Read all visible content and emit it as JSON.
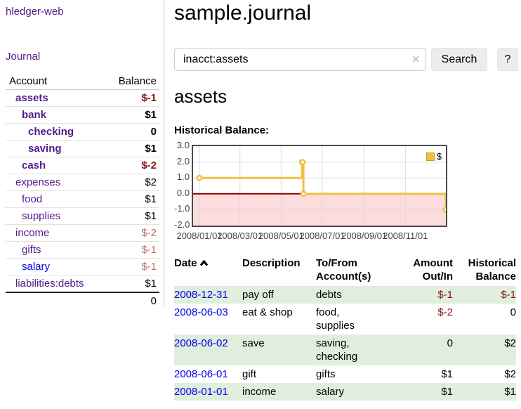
{
  "app": {
    "brand": "hledger-web"
  },
  "sidebar": {
    "journal_link": "Journal",
    "headers": {
      "account": "Account",
      "balance": "Balance"
    },
    "accounts": [
      {
        "name": "assets",
        "balance": "$-1"
      },
      {
        "name": "bank",
        "balance": "$1"
      },
      {
        "name": "checking",
        "balance": "0"
      },
      {
        "name": "saving",
        "balance": "$1"
      },
      {
        "name": "cash",
        "balance": "$-2"
      },
      {
        "name": "expenses",
        "balance": "$2"
      },
      {
        "name": "food",
        "balance": "$1"
      },
      {
        "name": "supplies",
        "balance": "$1"
      },
      {
        "name": "income",
        "balance": "$-2"
      },
      {
        "name": "gifts",
        "balance": "$-1"
      },
      {
        "name": "salary",
        "balance": "$-1"
      },
      {
        "name": "liabilities:debts",
        "balance": "$1"
      }
    ],
    "total": "0"
  },
  "main": {
    "title": "sample.journal",
    "search": {
      "value": "inacct:assets",
      "clear": "✕",
      "button": "Search",
      "help": "?"
    },
    "account_heading": "assets",
    "chart_label": "Historical Balance:",
    "register": {
      "headers": {
        "date": "Date",
        "description": "Description",
        "accounts": "To/From Account(s)",
        "amount": "Amount Out/In",
        "balance": "Historical Balance"
      },
      "rows": [
        {
          "date": "2008-12-31",
          "description": "pay off",
          "accounts": "debts",
          "amount": "$-1",
          "balance": "$-1"
        },
        {
          "date": "2008-06-03",
          "description": "eat & shop",
          "accounts": "food, supplies",
          "amount": "$-2",
          "balance": "0"
        },
        {
          "date": "2008-06-02",
          "description": "save",
          "accounts": "saving, checking",
          "amount": "0",
          "balance": "$2"
        },
        {
          "date": "2008-06-01",
          "description": "gift",
          "accounts": "gifts",
          "amount": "$1",
          "balance": "$2"
        },
        {
          "date": "2008-01-01",
          "description": "income",
          "accounts": "salary",
          "amount": "$1",
          "balance": "$1"
        }
      ]
    }
  },
  "chart_data": {
    "type": "line",
    "title": "Historical Balance:",
    "step": true,
    "series": [
      {
        "name": "$",
        "points": [
          [
            "2008-01-01",
            1
          ],
          [
            "2008-06-01",
            2
          ],
          [
            "2008-06-02",
            2
          ],
          [
            "2008-06-03",
            0
          ],
          [
            "2008-12-31",
            -1
          ]
        ]
      }
    ],
    "x_ticks": [
      "2008/01/01",
      "2008/03/01",
      "2008/05/01",
      "2008/07/01",
      "2008/09/01",
      "2008/11/01"
    ],
    "y_ticks": [
      3.0,
      2.0,
      1.0,
      0.0,
      -1.0,
      -2.0
    ],
    "ylim": [
      -2,
      3
    ],
    "xlim": [
      "2007-12-22",
      "2008-12-31"
    ],
    "grid": true,
    "legend_position": "top-right",
    "colors": {
      "line": "#edc240",
      "marker_fill": "#ffffff",
      "negative_region": "#fcdcdc",
      "zero_line": "#8b0000",
      "grid": "#dcdcdc",
      "border": "#4a4a4a"
    }
  }
}
